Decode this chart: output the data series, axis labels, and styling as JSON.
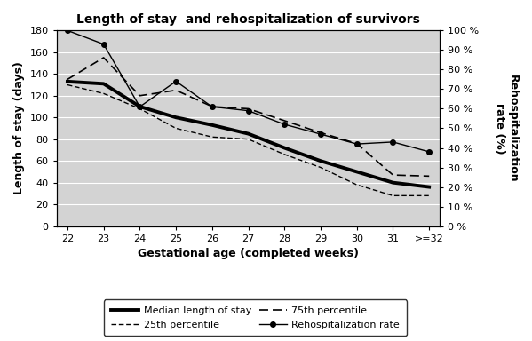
{
  "title": "Length of stay  and rehospitalization of survivors",
  "xlabel": "Gestational age (completed weeks)",
  "ylabel_left": "Length of stay (days)",
  "ylabel_right": "Rehospitalization\nrate (%)",
  "x_labels": [
    "22",
    "23",
    "24",
    "25",
    "26",
    "27",
    "28",
    "29",
    "30",
    "31",
    ">=32"
  ],
  "x_values": [
    0,
    1,
    2,
    3,
    4,
    5,
    6,
    7,
    8,
    9,
    10
  ],
  "median_los": [
    133,
    131,
    110,
    100,
    93,
    85,
    72,
    60,
    50,
    40,
    36
  ],
  "percentile_75": [
    135,
    155,
    120,
    125,
    110,
    108,
    97,
    86,
    76,
    47,
    46
  ],
  "percentile_25": [
    130,
    122,
    108,
    90,
    82,
    80,
    66,
    54,
    38,
    28,
    28
  ],
  "rehospitalization_pct": [
    100,
    93,
    61,
    74,
    61,
    59,
    52,
    47,
    42,
    43,
    38
  ],
  "ylim_left": [
    0,
    180
  ],
  "ylim_right": [
    0,
    100
  ],
  "yticks_left": [
    0,
    20,
    40,
    60,
    80,
    100,
    120,
    140,
    160,
    180
  ],
  "yticks_right": [
    0,
    10,
    20,
    30,
    40,
    50,
    60,
    70,
    80,
    90,
    100
  ],
  "background_color": "#d3d3d3",
  "grid_color": "#ffffff"
}
